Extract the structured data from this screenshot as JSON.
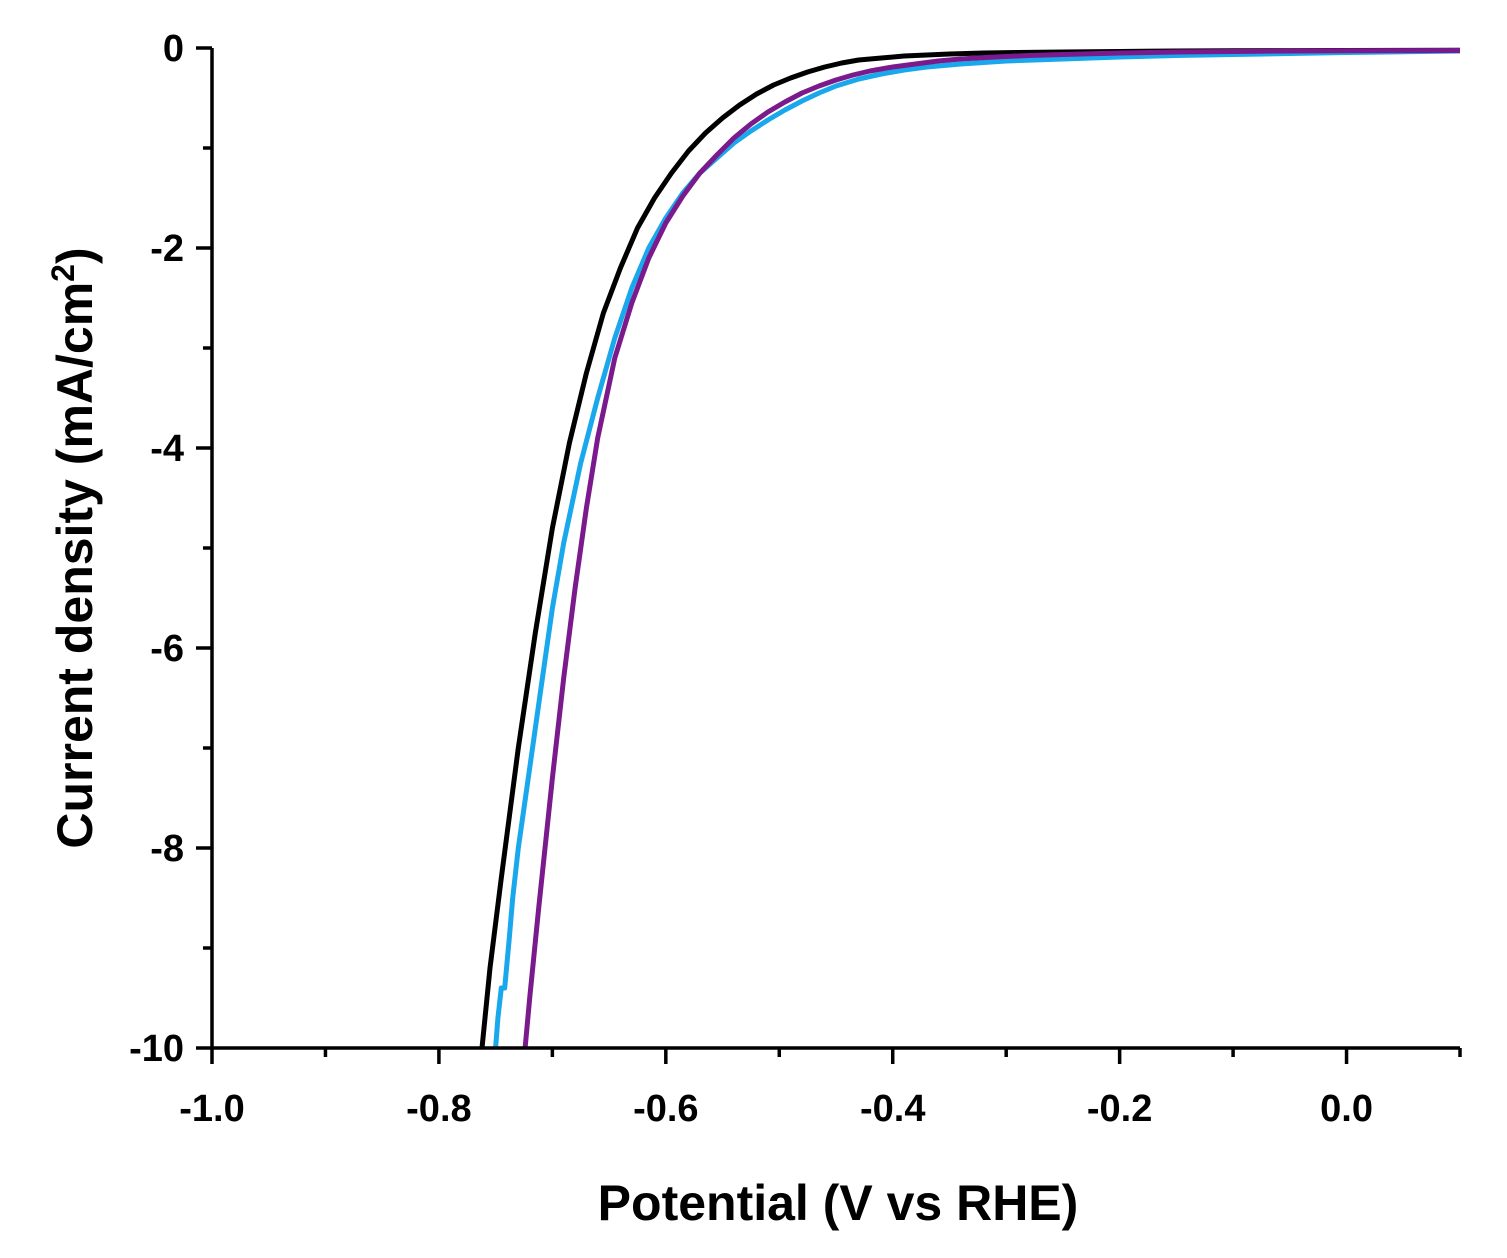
{
  "chart_data": {
    "type": "line",
    "title": "",
    "xlabel": "Potential (V vs RHE)",
    "ylabel_main": "Current density (mA/cm",
    "ylabel_sup": "2",
    "ylabel_close": ")",
    "xlim": [
      -1.0,
      0.1
    ],
    "ylim": [
      -10,
      0
    ],
    "x_major_ticks": [
      -1.0,
      -0.8,
      -0.6,
      -0.4,
      -0.2,
      0.0
    ],
    "x_tick_labels": [
      "-1.0",
      "-0.8",
      "-0.6",
      "-0.4",
      "-0.2",
      "0.0"
    ],
    "x_minor_ticks": [
      -0.9,
      -0.7,
      -0.5,
      -0.3,
      -0.1,
      0.1
    ],
    "y_major_ticks": [
      0,
      -2,
      -4,
      -6,
      -8,
      -10
    ],
    "y_tick_labels": [
      "0",
      "-2",
      "-4",
      "-6",
      "-8",
      "-10"
    ],
    "y_minor_ticks": [
      -1,
      -3,
      -5,
      -7,
      -9
    ],
    "legend": null,
    "series": [
      {
        "name": "black-curve",
        "color": "#000000",
        "x": [
          -0.762,
          -0.755,
          -0.745,
          -0.73,
          -0.715,
          -0.7,
          -0.685,
          -0.67,
          -0.655,
          -0.64,
          -0.625,
          -0.61,
          -0.595,
          -0.58,
          -0.565,
          -0.55,
          -0.535,
          -0.52,
          -0.505,
          -0.49,
          -0.475,
          -0.46,
          -0.445,
          -0.43,
          -0.41,
          -0.39,
          -0.37,
          -0.35,
          -0.32,
          -0.29,
          -0.25,
          -0.2,
          -0.15,
          -0.1,
          -0.05,
          0.0,
          0.05,
          0.1
        ],
        "y": [
          -10.0,
          -9.2,
          -8.3,
          -7.0,
          -5.85,
          -4.8,
          -3.95,
          -3.25,
          -2.65,
          -2.2,
          -1.8,
          -1.5,
          -1.25,
          -1.03,
          -0.85,
          -0.7,
          -0.57,
          -0.46,
          -0.37,
          -0.3,
          -0.24,
          -0.19,
          -0.15,
          -0.12,
          -0.1,
          -0.08,
          -0.07,
          -0.06,
          -0.05,
          -0.045,
          -0.04,
          -0.035,
          -0.03,
          -0.028,
          -0.026,
          -0.025,
          -0.024,
          -0.023
        ]
      },
      {
        "name": "blue-curve",
        "color": "#1AA8EC",
        "x": [
          -0.75,
          -0.748,
          -0.745,
          -0.742,
          -0.738,
          -0.735,
          -0.73,
          -0.725,
          -0.72,
          -0.71,
          -0.7,
          -0.69,
          -0.675,
          -0.66,
          -0.645,
          -0.63,
          -0.615,
          -0.6,
          -0.585,
          -0.57,
          -0.555,
          -0.54,
          -0.525,
          -0.51,
          -0.495,
          -0.48,
          -0.465,
          -0.45,
          -0.43,
          -0.41,
          -0.39,
          -0.37,
          -0.34,
          -0.3,
          -0.25,
          -0.2,
          -0.15,
          -0.1,
          -0.05,
          0.0,
          0.05,
          0.1
        ],
        "y": [
          -10.0,
          -9.7,
          -9.4,
          -9.4,
          -8.9,
          -8.5,
          -8.0,
          -7.6,
          -7.2,
          -6.4,
          -5.6,
          -4.95,
          -4.15,
          -3.5,
          -2.9,
          -2.4,
          -2.0,
          -1.7,
          -1.45,
          -1.25,
          -1.1,
          -0.95,
          -0.83,
          -0.72,
          -0.62,
          -0.53,
          -0.45,
          -0.38,
          -0.31,
          -0.26,
          -0.22,
          -0.19,
          -0.16,
          -0.13,
          -0.11,
          -0.09,
          -0.075,
          -0.065,
          -0.055,
          -0.045,
          -0.038,
          -0.03
        ]
      },
      {
        "name": "purple-curve",
        "color": "#7B1A8C",
        "x": [
          -0.724,
          -0.72,
          -0.712,
          -0.7,
          -0.69,
          -0.68,
          -0.67,
          -0.66,
          -0.645,
          -0.63,
          -0.615,
          -0.6,
          -0.585,
          -0.57,
          -0.555,
          -0.54,
          -0.525,
          -0.51,
          -0.495,
          -0.48,
          -0.465,
          -0.45,
          -0.435,
          -0.42,
          -0.4,
          -0.38,
          -0.36,
          -0.34,
          -0.31,
          -0.28,
          -0.25,
          -0.2,
          -0.15,
          -0.1,
          -0.05,
          0.0,
          0.05,
          0.1
        ],
        "y": [
          -10.0,
          -9.5,
          -8.6,
          -7.3,
          -6.3,
          -5.4,
          -4.6,
          -3.9,
          -3.1,
          -2.55,
          -2.1,
          -1.75,
          -1.48,
          -1.25,
          -1.07,
          -0.9,
          -0.76,
          -0.64,
          -0.54,
          -0.45,
          -0.38,
          -0.32,
          -0.27,
          -0.23,
          -0.19,
          -0.16,
          -0.13,
          -0.11,
          -0.09,
          -0.075,
          -0.065,
          -0.05,
          -0.04,
          -0.035,
          -0.03,
          -0.028,
          -0.026,
          -0.025
        ]
      }
    ]
  }
}
